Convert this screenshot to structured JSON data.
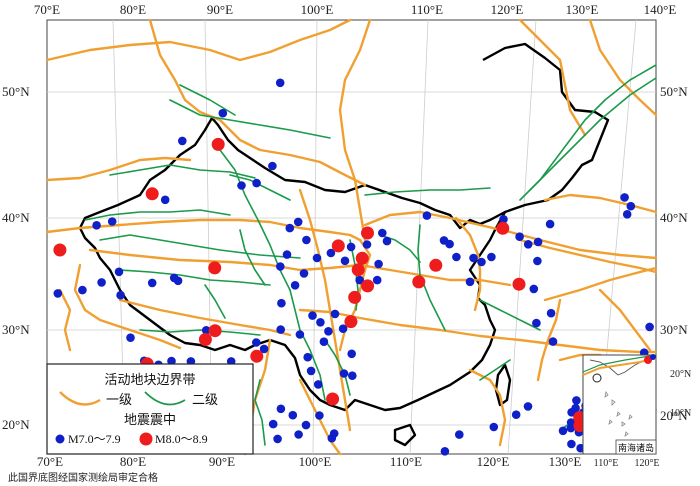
{
  "axes": {
    "top": [
      "70°E",
      "80°E",
      "90°E",
      "100°E",
      "110°E",
      "120°E",
      "130°E",
      "140°E"
    ],
    "bottom": [
      "70°E",
      "80°E",
      "90°E",
      "100°E",
      "110°E",
      "120°E",
      "130°E"
    ],
    "left": [
      "50°N",
      "40°N",
      "30°N",
      "20°N"
    ],
    "right": [
      "50°N",
      "40°N",
      "30°N",
      "20°N"
    ]
  },
  "legend": {
    "boundary_title": "活动地块边界带",
    "first_class": "一级",
    "second_class": "二级",
    "earthquake_title": "地震震中",
    "m7_label": "M7.0～7.9",
    "m8_label": "M8.0～8.9"
  },
  "inset": {
    "ticks_lat": [
      "20°N",
      "10°N"
    ],
    "ticks_lon": [
      "110°E",
      "120°E"
    ],
    "label": "南海诸岛"
  },
  "approval_text": "此国界底图经国家测绘局审定合格",
  "colors": {
    "first_class_boundary": "#f0a030",
    "second_class_boundary": "#1a9a4a",
    "m7_marker": "#1020c8",
    "m8_marker": "#ee1c1c",
    "border": "#000000"
  },
  "earthquakes_m8": [
    [
      75.3,
      39.9
    ],
    [
      83.6,
      43.5
    ],
    [
      89.8,
      47.1
    ],
    [
      90.5,
      36.3
    ],
    [
      90.2,
      30.1
    ],
    [
      91.0,
      30.8
    ],
    [
      85.3,
      28.5
    ],
    [
      94.8,
      28.3
    ],
    [
      102.0,
      37.6
    ],
    [
      104.8,
      38.7
    ],
    [
      104.2,
      36.5
    ],
    [
      103.8,
      35.5
    ],
    [
      104.6,
      34.1
    ],
    [
      103.4,
      33.1
    ],
    [
      103.0,
      31.0
    ],
    [
      101.3,
      24.3
    ],
    [
      109.3,
      34.5
    ],
    [
      111.0,
      36.0
    ],
    [
      117.8,
      39.6
    ],
    [
      118.5,
      34.8
    ],
    [
      121.8,
      23.5
    ],
    [
      121.7,
      22.8
    ]
  ],
  "earthquakes_m7": [
    [
      96.0,
      52.0
    ],
    [
      90.0,
      49.8
    ],
    [
      86.0,
      47.8
    ],
    [
      95.5,
      44.8
    ],
    [
      92.5,
      43.3
    ],
    [
      94.0,
      43.4
    ],
    [
      83.6,
      43.4
    ],
    [
      85.0,
      42.8
    ],
    [
      80.0,
      41.6
    ],
    [
      78.5,
      41.5
    ],
    [
      74.0,
      39.5
    ],
    [
      73.0,
      38.8
    ],
    [
      71.3,
      38.0
    ],
    [
      70.8,
      36.6
    ],
    [
      69.9,
      36.6
    ],
    [
      73.7,
      37.0
    ],
    [
      76.0,
      36.0
    ],
    [
      78.3,
      35.9
    ],
    [
      80.0,
      36.3
    ],
    [
      81.5,
      37.0
    ],
    [
      82.0,
      34.9
    ],
    [
      84.8,
      35.6
    ],
    [
      86.8,
      35.8
    ],
    [
      87.2,
      35.5
    ],
    [
      83.5,
      31.0
    ],
    [
      85.0,
      28.8
    ],
    [
      86.3,
      28.3
    ],
    [
      87.4,
      28.5
    ],
    [
      89.1,
      28.3
    ],
    [
      90.2,
      30.9
    ],
    [
      92.6,
      28.0
    ],
    [
      95.4,
      28.9
    ],
    [
      94.7,
      29.5
    ],
    [
      96.8,
      30.5
    ],
    [
      98.5,
      30.0
    ],
    [
      99.6,
      31.6
    ],
    [
      100.3,
      31.0
    ],
    [
      101.0,
      30.2
    ],
    [
      101.6,
      31.7
    ],
    [
      102.3,
      30.4
    ],
    [
      100.6,
      29.3
    ],
    [
      99.2,
      28.0
    ],
    [
      99.5,
      26.8
    ],
    [
      100.1,
      25.6
    ],
    [
      102.3,
      26.5
    ],
    [
      103.0,
      26.3
    ],
    [
      103.0,
      28.2
    ],
    [
      100.2,
      22.9
    ],
    [
      99.1,
      22.1
    ],
    [
      101.4,
      21.3
    ],
    [
      98.0,
      23.0
    ],
    [
      97.0,
      23.6
    ],
    [
      96.8,
      21.0
    ],
    [
      98.5,
      21.3
    ],
    [
      97.4,
      19.0
    ],
    [
      100.1,
      19.4
    ],
    [
      101.2,
      20.9
    ],
    [
      92.7,
      19.8
    ],
    [
      96.4,
      22.3
    ],
    [
      101.3,
      37.0
    ],
    [
      102.6,
      36.3
    ],
    [
      103.2,
      37.5
    ],
    [
      104.7,
      37.7
    ],
    [
      106.2,
      38.7
    ],
    [
      106.6,
      38.0
    ],
    [
      105.7,
      36.0
    ],
    [
      105.5,
      34.6
    ],
    [
      103.9,
      34.6
    ],
    [
      100.0,
      36.6
    ],
    [
      98.8,
      35.3
    ],
    [
      98.0,
      34.3
    ],
    [
      96.8,
      32.8
    ],
    [
      96.6,
      36.0
    ],
    [
      97.2,
      37.0
    ],
    [
      99.0,
      38.2
    ],
    [
      97.4,
      39.3
    ],
    [
      98.2,
      39.8
    ],
    [
      110.6,
      40.3
    ],
    [
      112.0,
      38.2
    ],
    [
      112.5,
      37.9
    ],
    [
      113.0,
      36.8
    ],
    [
      114.6,
      36.8
    ],
    [
      114.0,
      34.7
    ],
    [
      115.3,
      36.5
    ],
    [
      116.3,
      37.0
    ],
    [
      118.0,
      40.4
    ],
    [
      119.3,
      39.0
    ],
    [
      120.0,
      38.4
    ],
    [
      121.0,
      38.7
    ],
    [
      122.5,
      40.4
    ],
    [
      120.6,
      37.0
    ],
    [
      119.8,
      34.5
    ],
    [
      121.0,
      32.5
    ],
    [
      119.5,
      31.5
    ],
    [
      120.7,
      30.0
    ],
    [
      117.6,
      24.1
    ],
    [
      116.5,
      23.3
    ],
    [
      114.5,
      22.1
    ],
    [
      111.6,
      21.3
    ],
    [
      110.3,
      19.8
    ],
    [
      119.1,
      17.1
    ],
    [
      129.8,
      32.4
    ],
    [
      128.7,
      30.0
    ],
    [
      126.8,
      28.3
    ],
    [
      126.9,
      22.8
    ],
    [
      125.8,
      21.7
    ],
    [
      130.7,
      43.8
    ],
    [
      131.1,
      43.1
    ],
    [
      130.5,
      42.3
    ],
    [
      140.0,
      31.3
    ],
    [
      124.8,
      21.1
    ],
    [
      122.5,
      24.6
    ],
    [
      121.8,
      25.0
    ],
    [
      122.2,
      24.0
    ],
    [
      121.6,
      24.3
    ],
    [
      121.2,
      23.9
    ],
    [
      120.9,
      22.5
    ],
    [
      121.5,
      22.2
    ],
    [
      121.0,
      23.0
    ],
    [
      120.2,
      22.2
    ],
    [
      122.6,
      21.9
    ],
    [
      122.0,
      21.4
    ],
    [
      120.7,
      21.1
    ],
    [
      121.4,
      20.8
    ]
  ]
}
